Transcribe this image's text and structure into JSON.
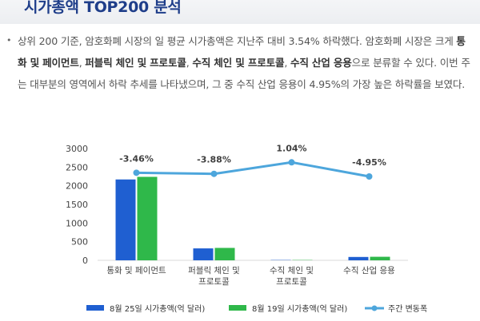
{
  "header": {
    "title": "시가총액 TOP200 분석"
  },
  "body": {
    "bullet": "•",
    "p_intro": "상위 200 기준, 암호화폐 시장의 일 평균 시가총액은 지난주 대비 3.54% 하락했다. 암호화폐 시장은 크게 ",
    "cat1": "통화 및 페이먼트",
    "sep1": ", ",
    "cat2": "퍼블릭 체인 및 프로토콜",
    "sep2": ", ",
    "cat3": "수직 체인 및 프로토콜",
    "sep3": ", ",
    "cat4": "수직 산업 응용",
    "p_outro": "으로 분류할 수 있다. 이번 주는 대부분의 영역에서 하락 추세를 나타냈으며, 그 중 수직 산업 응용이 4.95%의 가장 높은 하락률을 보였다."
  },
  "chart_data": {
    "type": "bar",
    "categories": [
      [
        "통화 및 페이먼트"
      ],
      [
        "퍼블릭 체인 및",
        "프로토콜"
      ],
      [
        "수직 체인 및",
        "프로토콜"
      ],
      [
        "수직 산업 응용"
      ]
    ],
    "series": [
      {
        "name": "8월 25일 시가총액(억 달러)",
        "type": "bar",
        "color": "#1f5fd1",
        "values": [
          2170,
          320,
          8,
          90
        ]
      },
      {
        "name": "8월 19일 시가총액(억 달러)",
        "type": "bar",
        "color": "#2fb84a",
        "values": [
          2240,
          333,
          8,
          95
        ]
      },
      {
        "name": "주간 변동폭",
        "type": "line",
        "color": "#4da6dc",
        "values": [
          2350,
          2320,
          2630,
          2250
        ],
        "labels": [
          "-3.46%",
          "-3.88%",
          "1.04%",
          "-4.95%"
        ]
      }
    ],
    "ylim": [
      0,
      3000
    ],
    "yticks": [
      0,
      500,
      1000,
      1500,
      2000,
      2500,
      3000
    ],
    "legend": "bottom",
    "grid": false
  }
}
